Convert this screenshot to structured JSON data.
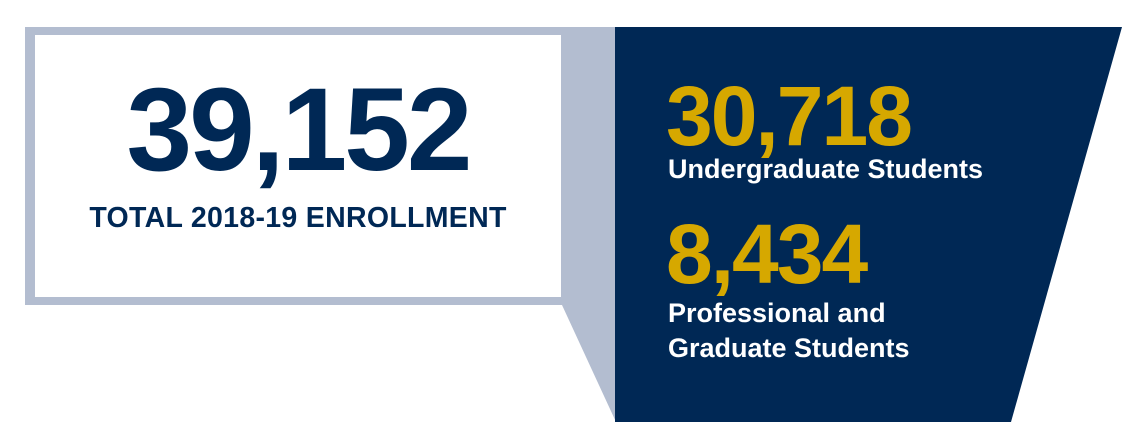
{
  "colors": {
    "navy": "#002855",
    "gold": "#d6a800",
    "light_slate": "#b3bdd0",
    "white": "#ffffff"
  },
  "total": {
    "value": "39,152",
    "label": "TOTAL 2018-19 ENROLLMENT"
  },
  "undergraduate": {
    "value": "30,718",
    "label": "Undergraduate Students"
  },
  "graduate": {
    "value": "8,434",
    "label": "Professional and Graduate Students"
  }
}
